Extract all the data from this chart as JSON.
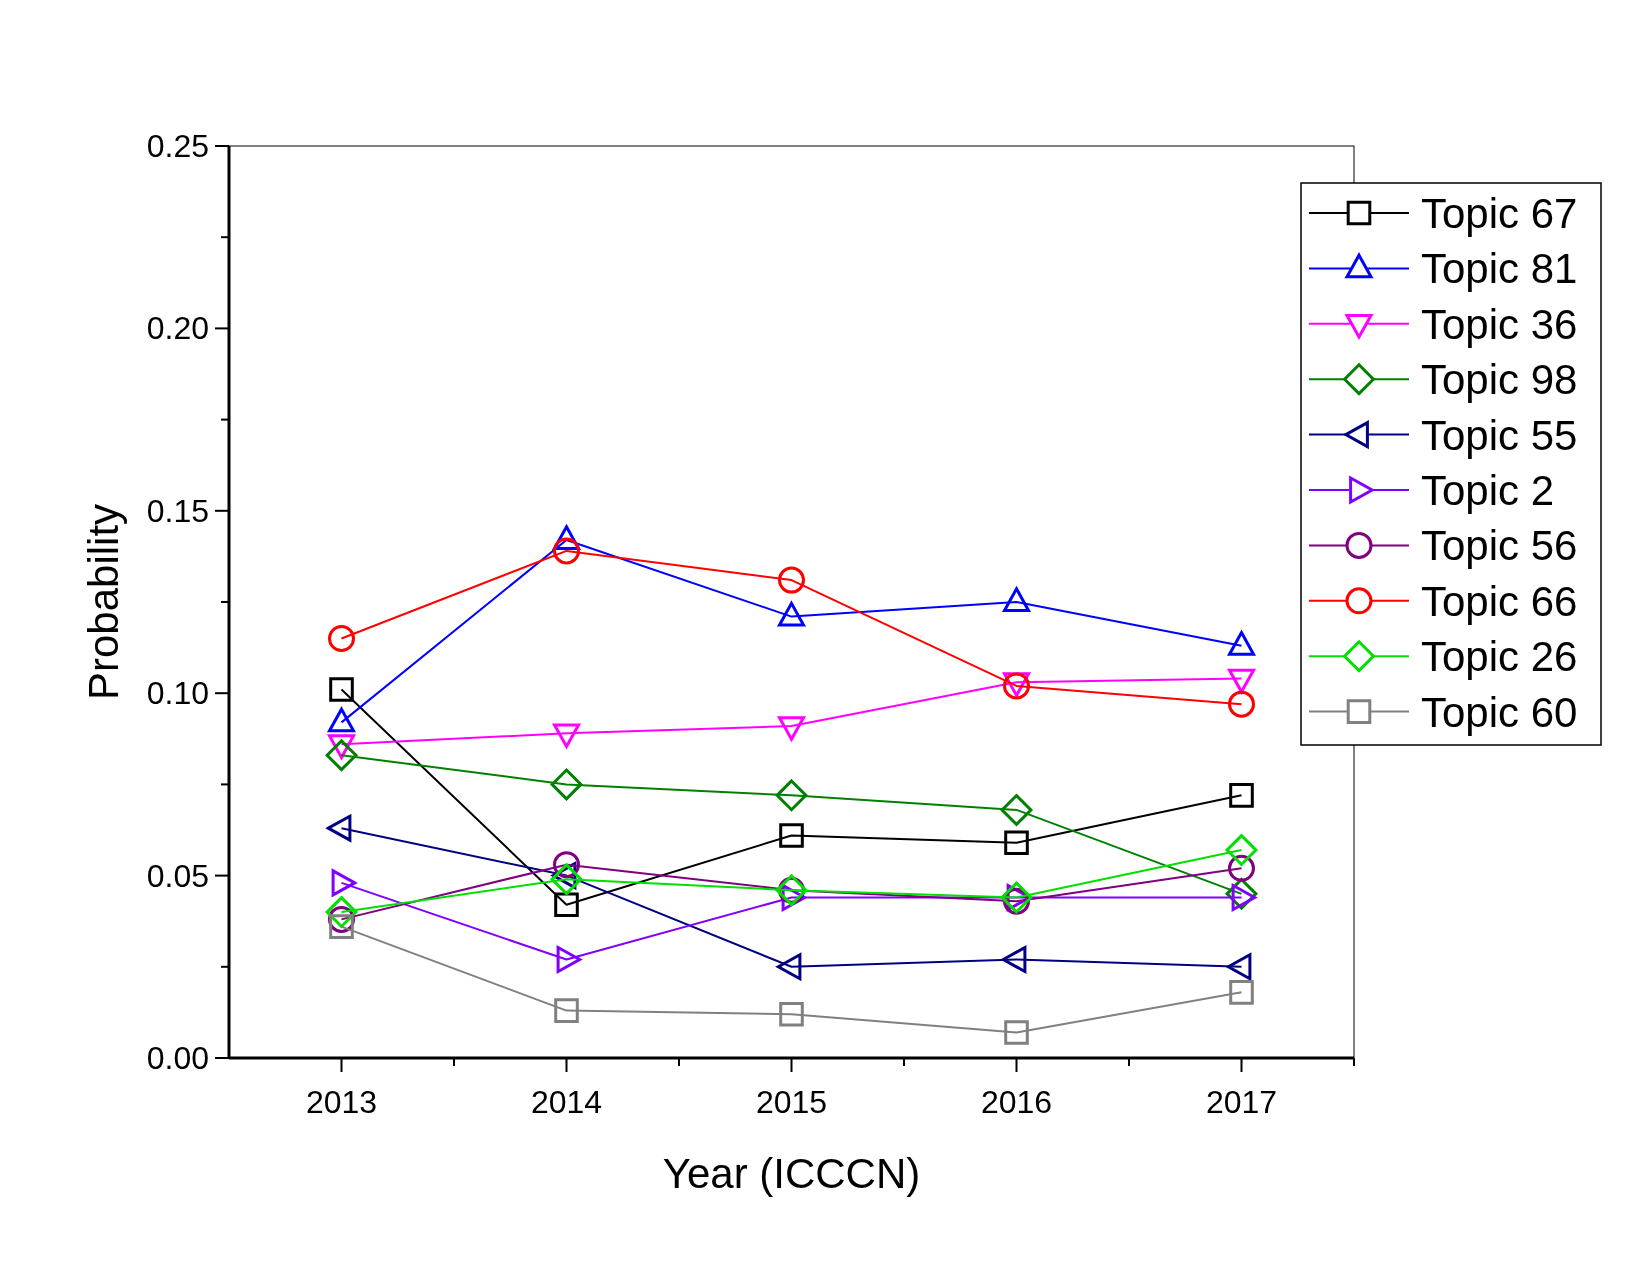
{
  "chart_data": {
    "type": "line",
    "xlabel": "Year (ICCCN)",
    "ylabel": "Probability",
    "x": [
      2013,
      2014,
      2015,
      2016,
      2017
    ],
    "xlim": [
      2012.5,
      2017.5
    ],
    "xticks": [
      2013,
      {
        "value": 2013.5,
        "label": null
      },
      2014,
      {
        "value": 2014.5,
        "label": null
      },
      2015,
      {
        "value": 2015.5,
        "label": null
      },
      2016,
      {
        "value": 2016.5,
        "label": null
      },
      2017,
      {
        "value": 2017.5,
        "label": null
      }
    ],
    "ylim": [
      0,
      0.25
    ],
    "yticks": [
      {
        "value": 0,
        "label": "0.00"
      },
      {
        "value": 0.025,
        "label": null
      },
      {
        "value": 0.05,
        "label": "0.05"
      },
      {
        "value": 0.075,
        "label": null
      },
      {
        "value": 0.1,
        "label": "0.10"
      },
      {
        "value": 0.125,
        "label": null
      },
      {
        "value": 0.15,
        "label": "0.15"
      },
      {
        "value": 0.175,
        "label": null
      },
      {
        "value": 0.2,
        "label": "0.20"
      },
      {
        "value": 0.225,
        "label": null
      },
      {
        "value": 0.25,
        "label": "0.25"
      }
    ],
    "grid": false,
    "legend": "right",
    "line_style": "solid",
    "series": [
      {
        "name": "Topic 67",
        "color": "#000000",
        "marker": "square",
        "values": [
          0.101,
          0.042,
          0.061,
          0.059,
          0.072
        ]
      },
      {
        "name": "Topic 81",
        "color": "#0000ff",
        "marker": "triangle",
        "values": [
          0.092,
          0.142,
          0.121,
          0.125,
          0.113
        ]
      },
      {
        "name": "Topic 36",
        "color": "#ff00ff",
        "marker": "triangle-down",
        "values": [
          0.086,
          0.089,
          0.091,
          0.103,
          0.104
        ]
      },
      {
        "name": "Topic 98",
        "color": "#008000",
        "marker": "diamond",
        "values": [
          0.083,
          0.075,
          0.072,
          0.068,
          0.045
        ]
      },
      {
        "name": "Topic 55",
        "color": "#000080",
        "marker": "triangle-left",
        "values": [
          0.063,
          0.05,
          0.025,
          0.027,
          0.025
        ]
      },
      {
        "name": "Topic 2",
        "color": "#8000ff",
        "marker": "triangle-right",
        "values": [
          0.048,
          0.027,
          0.044,
          0.044,
          0.044
        ]
      },
      {
        "name": "Topic 56",
        "color": "#800080",
        "marker": "circle",
        "values": [
          0.038,
          0.053,
          0.046,
          0.043,
          0.052
        ]
      },
      {
        "name": "Topic 66",
        "color": "#ff0000",
        "marker": "circle",
        "values": [
          0.115,
          0.139,
          0.131,
          0.102,
          0.097
        ]
      },
      {
        "name": "Topic 26",
        "color": "#00e000",
        "marker": "diamond",
        "values": [
          0.04,
          0.049,
          0.046,
          0.044,
          0.057
        ]
      },
      {
        "name": "Topic 60",
        "color": "#808080",
        "marker": "square",
        "values": [
          0.036,
          0.013,
          0.012,
          0.007,
          0.018
        ]
      }
    ]
  }
}
